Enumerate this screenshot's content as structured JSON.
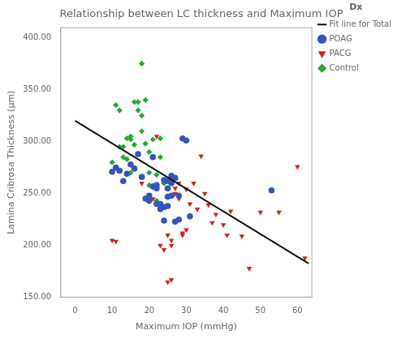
{
  "chart_data": {
    "type": "scatter",
    "title": "Relationship between LC thickness and Maximum IOP",
    "xlabel": "Maximum IOP (mmHg)",
    "ylabel": "Lamina Cribrosa Thickness (μm)",
    "xlim": [
      -4,
      64
    ],
    "ylim": [
      150,
      410
    ],
    "xticks": [
      0,
      10,
      20,
      30,
      40,
      50,
      60
    ],
    "yticks": [
      {
        "value": 150,
        "label": "150.00"
      },
      {
        "value": 200,
        "label": "200.00"
      },
      {
        "value": 250,
        "label": "250.00"
      },
      {
        "value": 300,
        "label": "300.00"
      },
      {
        "value": 350,
        "label": "350.00"
      },
      {
        "value": 400,
        "label": "400.00"
      }
    ],
    "grid": false,
    "legend": "right",
    "legend_title": "Dx",
    "series": [
      {
        "name": "POAG",
        "type": "scatter",
        "color": "#3355bb",
        "marker": "circle",
        "x": [
          10,
          11,
          12,
          13,
          14,
          15,
          16,
          17,
          18,
          19,
          20,
          20,
          21,
          21,
          22,
          22,
          22,
          23,
          23,
          24,
          24,
          24,
          25,
          25,
          25,
          25,
          26,
          26,
          26,
          27,
          27,
          28,
          28,
          29,
          30,
          31,
          53
        ],
        "values": [
          271,
          275,
          272,
          262,
          269,
          278,
          274,
          288,
          266,
          245,
          243,
          248,
          285,
          257,
          258,
          255,
          240,
          240,
          235,
          237,
          224,
          263,
          262,
          247,
          238,
          255,
          267,
          260,
          248,
          265,
          223,
          225,
          248,
          303,
          301,
          228,
          253
        ]
      },
      {
        "name": "PACG",
        "type": "scatter",
        "color": "#cc2222",
        "marker": "triangle_down",
        "x": [
          10,
          11,
          18,
          21,
          22,
          22,
          23,
          24,
          25,
          25,
          26,
          26,
          26,
          27,
          27,
          28,
          28,
          29,
          29,
          30,
          30,
          31,
          32,
          33,
          34,
          35,
          36,
          37,
          38,
          40,
          41,
          42,
          45,
          47,
          50,
          55,
          60,
          62
        ],
        "values": [
          205,
          204,
          260,
          245,
          305,
          258,
          200,
          196,
          210,
          165,
          167,
          200,
          205,
          250,
          255,
          260,
          245,
          212,
          210,
          254,
          215,
          240,
          260,
          235,
          286,
          250,
          239,
          222,
          230,
          220,
          210,
          233,
          209,
          178,
          232,
          232,
          276,
          188
        ]
      },
      {
        "name": "Control",
        "type": "scatter",
        "color": "#22aa33",
        "marker": "diamond",
        "x": [
          10,
          10,
          11,
          11,
          12,
          12,
          13,
          13,
          14,
          14,
          15,
          15,
          15,
          16,
          16,
          17,
          17,
          18,
          18,
          18,
          19,
          19,
          20,
          20,
          20,
          21,
          21,
          22,
          22,
          22,
          23,
          23,
          24,
          24,
          25
        ],
        "values": [
          271,
          280,
          275,
          335,
          330,
          295,
          295,
          285,
          283,
          303,
          302,
          305,
          270,
          297,
          338,
          338,
          330,
          325,
          310,
          375,
          340,
          298,
          270,
          290,
          258,
          256,
          302,
          255,
          268,
          243,
          303,
          285,
          260,
          260,
          255
        ]
      },
      {
        "name": "Fit line for Total",
        "type": "line",
        "color": "#111111",
        "line_style": "solid",
        "x": [
          0,
          63
        ],
        "values": [
          320,
          182.66
        ]
      }
    ]
  }
}
